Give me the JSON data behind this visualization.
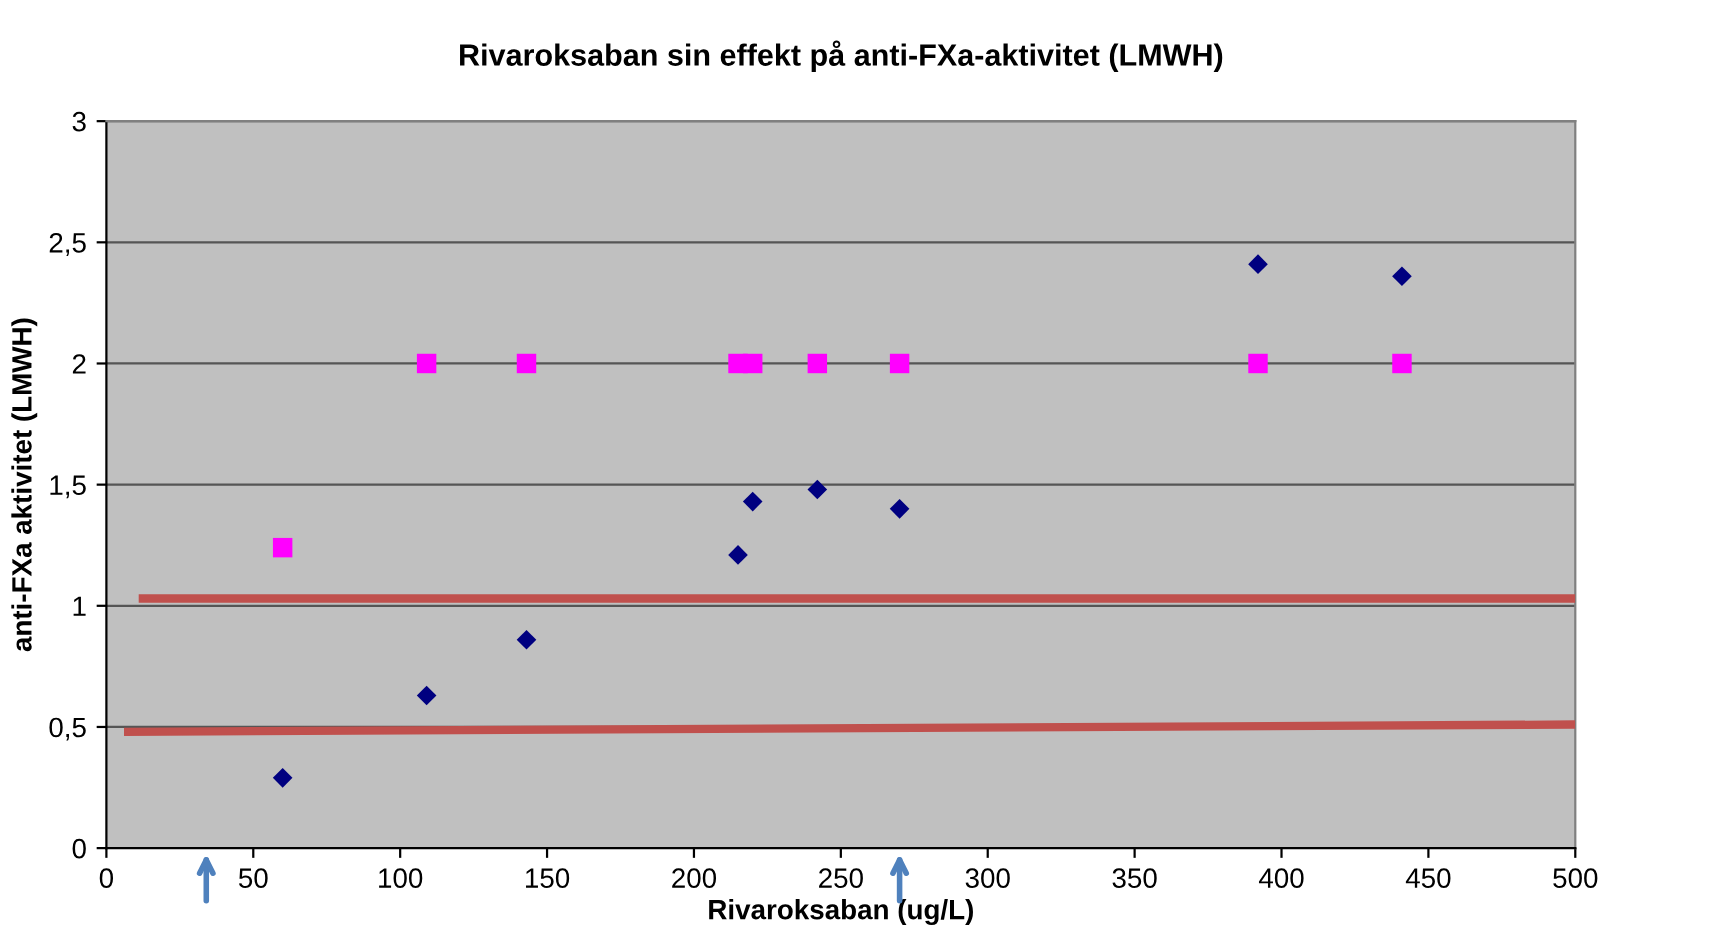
{
  "chart_data": {
    "type": "scatter",
    "title": "Rivaroksaban sin effekt på anti-FXa-aktivitet (LMWH)",
    "xlabel": "Rivaroksaban (ug/L)",
    "ylabel": "anti-FXa aktivitet (LMWH)",
    "xlim": [
      0,
      500
    ],
    "xticks": [
      0,
      50,
      100,
      150,
      200,
      250,
      300,
      350,
      400,
      450,
      500
    ],
    "ylim": [
      0,
      3
    ],
    "yticks": [
      {
        "value": 0,
        "label": "0"
      },
      {
        "value": 0.5,
        "label": "0,5"
      },
      {
        "value": 1,
        "label": "1"
      },
      {
        "value": 1.5,
        "label": "1,5"
      },
      {
        "value": 2,
        "label": "2"
      },
      {
        "value": 2.5,
        "label": "2,5"
      },
      {
        "value": 3,
        "label": "3"
      }
    ],
    "grid": "y",
    "series": [
      {
        "type": "line",
        "color": "#c0504d",
        "marker": "none",
        "x": [
          11,
          500
        ],
        "values": [
          1.03,
          1.03
        ]
      },
      {
        "type": "line",
        "color": "#c0504d",
        "marker": "none",
        "x": [
          6,
          500
        ],
        "values": [
          0.48,
          0.51
        ]
      },
      {
        "color": "#ff00ff",
        "marker": "square",
        "x": [
          60,
          109,
          143,
          215,
          220,
          242,
          270,
          392,
          441
        ],
        "values": [
          1.24,
          2,
          2,
          2,
          2,
          2,
          2,
          2,
          2
        ]
      },
      {
        "color": "#000080",
        "marker": "diamond",
        "x": [
          60,
          109,
          143,
          215,
          220,
          242,
          270,
          392,
          441
        ],
        "values": [
          0.29,
          0.63,
          0.86,
          1.21,
          1.43,
          1.48,
          1.4,
          2.41,
          2.36
        ]
      }
    ]
  }
}
